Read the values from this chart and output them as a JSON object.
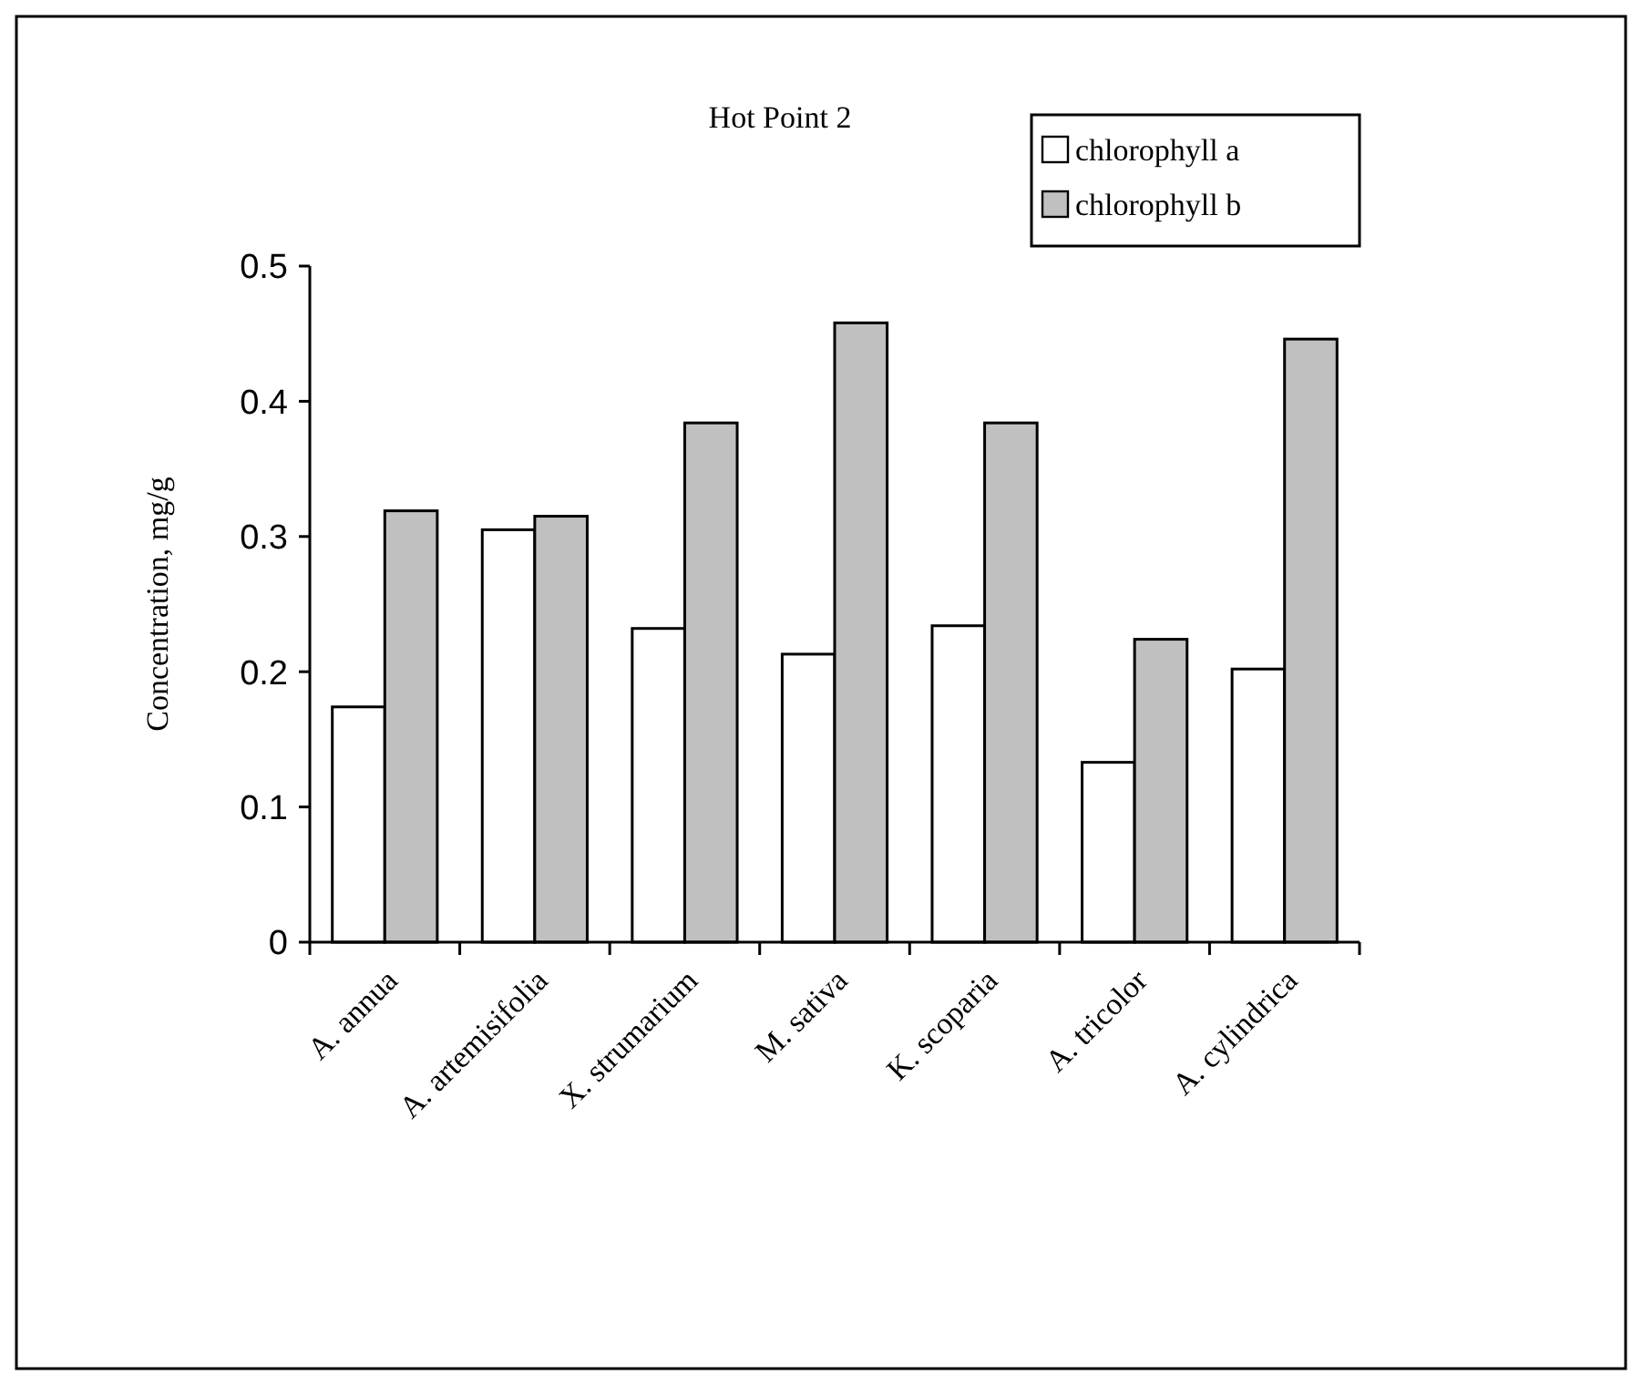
{
  "chart_data": {
    "type": "bar",
    "title": "Hot Point 2",
    "ylabel": "Concentration, mg/g",
    "categories": [
      "A. annua",
      "A. artemisifolia",
      "X. strumarium",
      "M. sativa",
      "K. scoparia",
      "A. tricolor",
      "A. cylindrica"
    ],
    "series": [
      {
        "name": "chlorophyll a",
        "color": "#ffffff",
        "values": [
          0.174,
          0.305,
          0.232,
          0.213,
          0.234,
          0.133,
          0.202
        ]
      },
      {
        "name": "chlorophyll b",
        "color": "#c0c0c0",
        "values": [
          0.319,
          0.315,
          0.384,
          0.458,
          0.384,
          0.224,
          0.446
        ]
      }
    ],
    "ylim": [
      0,
      0.5
    ],
    "yticks": [
      0,
      0.1,
      0.2,
      0.3,
      0.4,
      0.5
    ],
    "grid": false,
    "legend": "top right"
  }
}
